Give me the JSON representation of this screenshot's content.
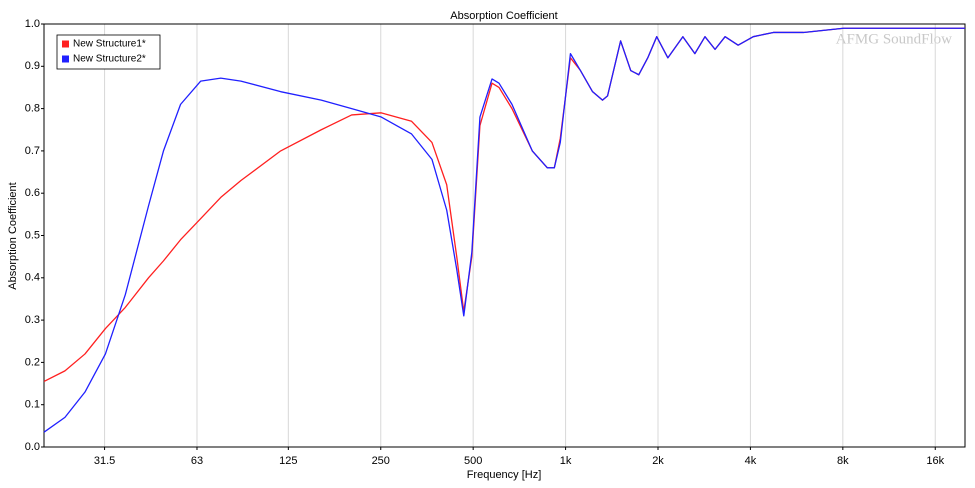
{
  "chart_data": {
    "type": "line",
    "title": "Absorption Coefficient",
    "x_label": "Frequency [Hz]",
    "y_label": "Absorption Coefficient",
    "annotation": "AFMG SoundFlow",
    "x_log": true,
    "grid": true,
    "legend_position": "top-left",
    "xlim": [
      20,
      20000
    ],
    "xticks": [
      31.5,
      63,
      125,
      250,
      500,
      {
        "value": 1000,
        "label": "1k"
      },
      {
        "value": 2000,
        "label": "2k"
      },
      {
        "value": 4000,
        "label": "4k"
      },
      {
        "value": 8000,
        "label": "8k"
      },
      {
        "value": 16000,
        "label": "16k"
      }
    ],
    "ylim": [
      0,
      1
    ],
    "yticks": [
      {
        "value": 0,
        "label": "0.0"
      },
      0.1,
      0.2,
      0.3,
      0.4,
      0.5,
      0.6,
      0.7,
      0.8,
      0.9,
      {
        "value": 1,
        "label": "1.0"
      }
    ],
    "x": [
      20,
      23.4,
      27.2,
      31.7,
      36.8,
      43.8,
      49,
      55.7,
      64.8,
      75.3,
      87.6,
      118,
      160,
      201,
      251,
      315,
      367,
      410,
      442,
      466,
      495,
      526,
      576,
      607,
      669,
      779,
      872,
      919,
      961,
      1037,
      1118,
      1224,
      1319,
      1370,
      1511,
      1630,
      1731,
      1852,
      1981,
      2153,
      2410,
      2637,
      2845,
      3068,
      3308,
      3648,
      4086,
      4748,
      5952,
      8047,
      10876,
      14700,
      20000
    ],
    "series": [
      {
        "name": "New Structure1*",
        "color": "#ff2020",
        "values": [
          0.155,
          0.18,
          0.22,
          0.28,
          0.33,
          0.4,
          0.44,
          0.49,
          0.54,
          0.59,
          0.63,
          0.7,
          0.75,
          0.785,
          0.79,
          0.77,
          0.72,
          0.62,
          0.45,
          0.32,
          0.45,
          0.76,
          0.86,
          0.85,
          0.8,
          0.7,
          0.66,
          0.66,
          0.73,
          0.92,
          0.89,
          0.84,
          0.82,
          0.83,
          0.96,
          0.89,
          0.88,
          0.92,
          0.97,
          0.92,
          0.97,
          0.93,
          0.97,
          0.94,
          0.97,
          0.95,
          0.97,
          0.98,
          0.98,
          0.99,
          0.99,
          0.99,
          0.99
        ]
      },
      {
        "name": "New Structure2*",
        "color": "#2020ff",
        "values": [
          0.035,
          0.07,
          0.13,
          0.22,
          0.36,
          0.57,
          0.7,
          0.81,
          0.865,
          0.872,
          0.865,
          0.84,
          0.82,
          0.8,
          0.78,
          0.74,
          0.68,
          0.56,
          0.42,
          0.31,
          0.46,
          0.78,
          0.87,
          0.86,
          0.81,
          0.7,
          0.66,
          0.66,
          0.72,
          0.93,
          0.89,
          0.84,
          0.82,
          0.83,
          0.96,
          0.89,
          0.88,
          0.92,
          0.97,
          0.92,
          0.97,
          0.93,
          0.97,
          0.94,
          0.97,
          0.95,
          0.97,
          0.98,
          0.98,
          0.99,
          0.99,
          0.99,
          0.99
        ]
      }
    ]
  }
}
